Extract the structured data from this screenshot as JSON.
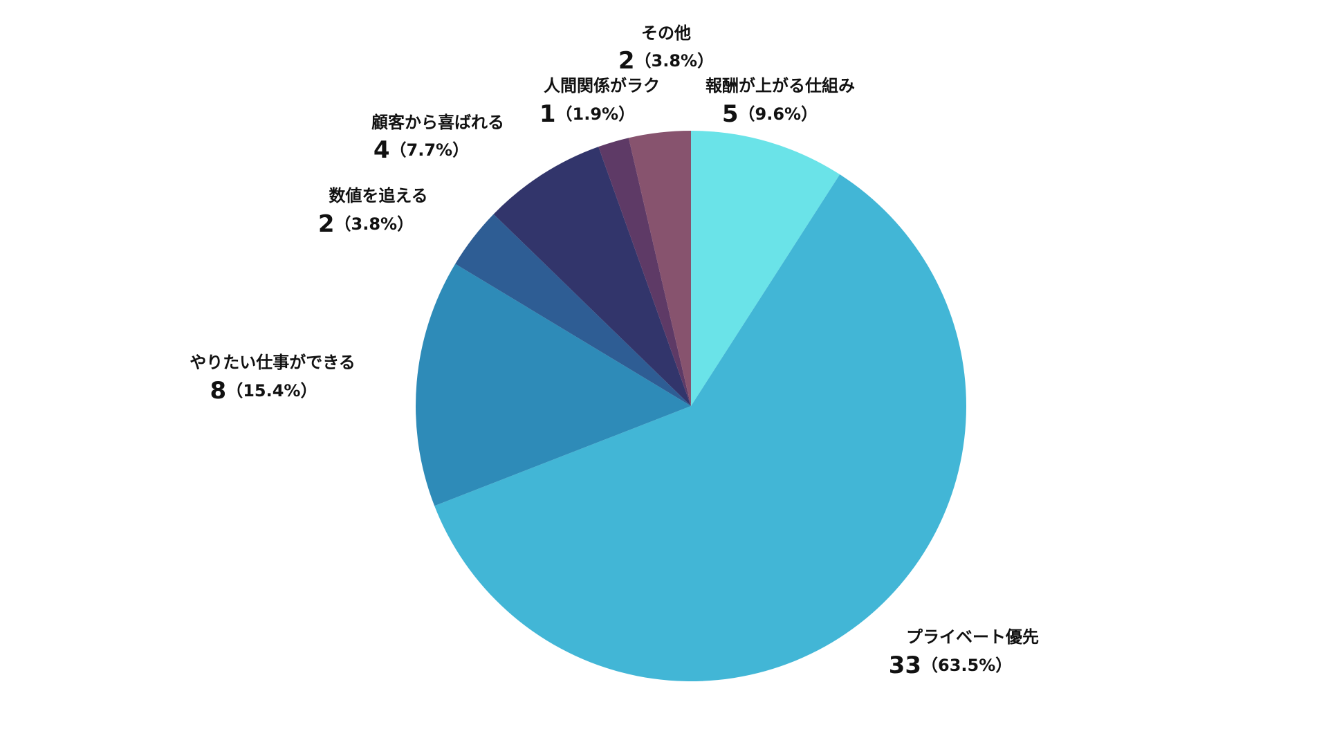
{
  "chart_data": {
    "type": "pie",
    "categories": [
      "報酬が上がる仕組み",
      "プライベート優先",
      "やりたい仕事ができる",
      "数値を追える",
      "顧客から喜ばれる",
      "人間関係がラク",
      "その他"
    ],
    "values": [
      5,
      33,
      8,
      2,
      4,
      1,
      2
    ],
    "shares": [
      "（9.6%）",
      "（63.5%）",
      "（15.4%）",
      "（3.8%）",
      "（7.7%）",
      "（1.9%）",
      "（3.8%）"
    ],
    "colors": [
      "#6ae3e8",
      "#42b6d6",
      "#2e8bb8",
      "#2e5d94",
      "#32356b",
      "#5e3a66",
      "#87536e"
    ]
  }
}
